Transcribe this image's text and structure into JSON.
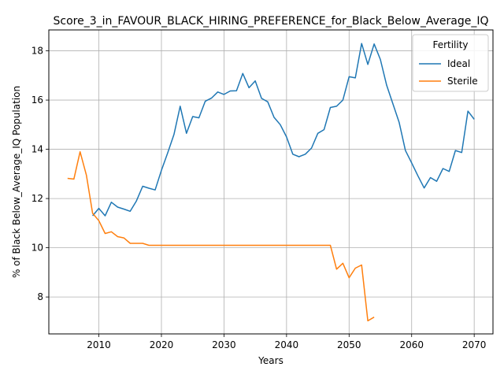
{
  "chart_data": {
    "type": "line",
    "title": "Score_3_in_FAVOUR_BLACK_HIRING_PREFERENCE_for_Black_Below_Average_IQ",
    "xlabel": "Years",
    "ylabel": "% of Black Below_Average_IQ Population",
    "xlim": [
      2002,
      2073
    ],
    "ylim": [
      6.5,
      18.85
    ],
    "xticks": [
      2010,
      2020,
      2030,
      2040,
      2050,
      2060,
      2070
    ],
    "yticks": [
      8,
      10,
      12,
      14,
      16,
      18
    ],
    "grid": true,
    "legend": {
      "title": "Fertility",
      "placement": "upper right"
    },
    "series": [
      {
        "name": "Ideal",
        "color": "#1f77b4",
        "x": [
          2009,
          2010,
          2011,
          2012,
          2013,
          2014,
          2015,
          2016,
          2017,
          2018,
          2019,
          2020,
          2021,
          2022,
          2023,
          2024,
          2025,
          2026,
          2027,
          2028,
          2029,
          2030,
          2031,
          2032,
          2033,
          2034,
          2035,
          2036,
          2037,
          2038,
          2039,
          2040,
          2041,
          2042,
          2043,
          2044,
          2045,
          2046,
          2047,
          2048,
          2049,
          2050,
          2051,
          2052,
          2053,
          2054,
          2055,
          2056,
          2057,
          2058,
          2059,
          2060,
          2061,
          2062,
          2063,
          2064,
          2065,
          2066,
          2067,
          2068,
          2069,
          2070
        ],
        "y": [
          11.3,
          11.6,
          11.3,
          11.85,
          11.65,
          11.57,
          11.48,
          11.9,
          12.5,
          12.42,
          12.35,
          13.15,
          13.85,
          14.6,
          15.75,
          14.65,
          15.33,
          15.28,
          15.95,
          16.08,
          16.33,
          16.23,
          16.37,
          16.38,
          17.08,
          16.5,
          16.78,
          16.07,
          15.93,
          15.3,
          15.0,
          14.5,
          13.8,
          13.7,
          13.8,
          14.05,
          14.65,
          14.8,
          15.7,
          15.75,
          16.0,
          16.95,
          16.9,
          18.3,
          17.45,
          18.28,
          17.65,
          16.6,
          15.85,
          15.1,
          13.95,
          13.45,
          12.92,
          12.43,
          12.85,
          12.7,
          13.22,
          13.1,
          13.95,
          13.87,
          15.55,
          15.22
        ]
      },
      {
        "name": "Sterile",
        "color": "#ff7f0e",
        "x": [
          2005,
          2006,
          2007,
          2008,
          2009,
          2010,
          2011,
          2012,
          2013,
          2014,
          2015,
          2016,
          2017,
          2018,
          2019,
          2020,
          2021,
          2022,
          2023,
          2024,
          2025,
          2026,
          2027,
          2028,
          2029,
          2030,
          2031,
          2032,
          2033,
          2034,
          2035,
          2036,
          2037,
          2038,
          2039,
          2040,
          2041,
          2042,
          2043,
          2044,
          2045,
          2046,
          2047,
          2048,
          2049,
          2050,
          2051,
          2052,
          2053,
          2054
        ],
        "y": [
          12.82,
          12.79,
          13.9,
          12.95,
          11.4,
          11.1,
          10.58,
          10.65,
          10.45,
          10.4,
          10.18,
          10.18,
          10.18,
          10.1,
          10.1,
          10.1,
          10.1,
          10.1,
          10.1,
          10.1,
          10.1,
          10.1,
          10.1,
          10.1,
          10.1,
          10.1,
          10.1,
          10.1,
          10.1,
          10.1,
          10.1,
          10.1,
          10.1,
          10.1,
          10.1,
          10.1,
          10.1,
          10.1,
          10.1,
          10.1,
          10.1,
          10.1,
          10.1,
          9.13,
          9.37,
          8.78,
          9.17,
          9.3,
          7.03,
          7.18
        ]
      }
    ]
  }
}
